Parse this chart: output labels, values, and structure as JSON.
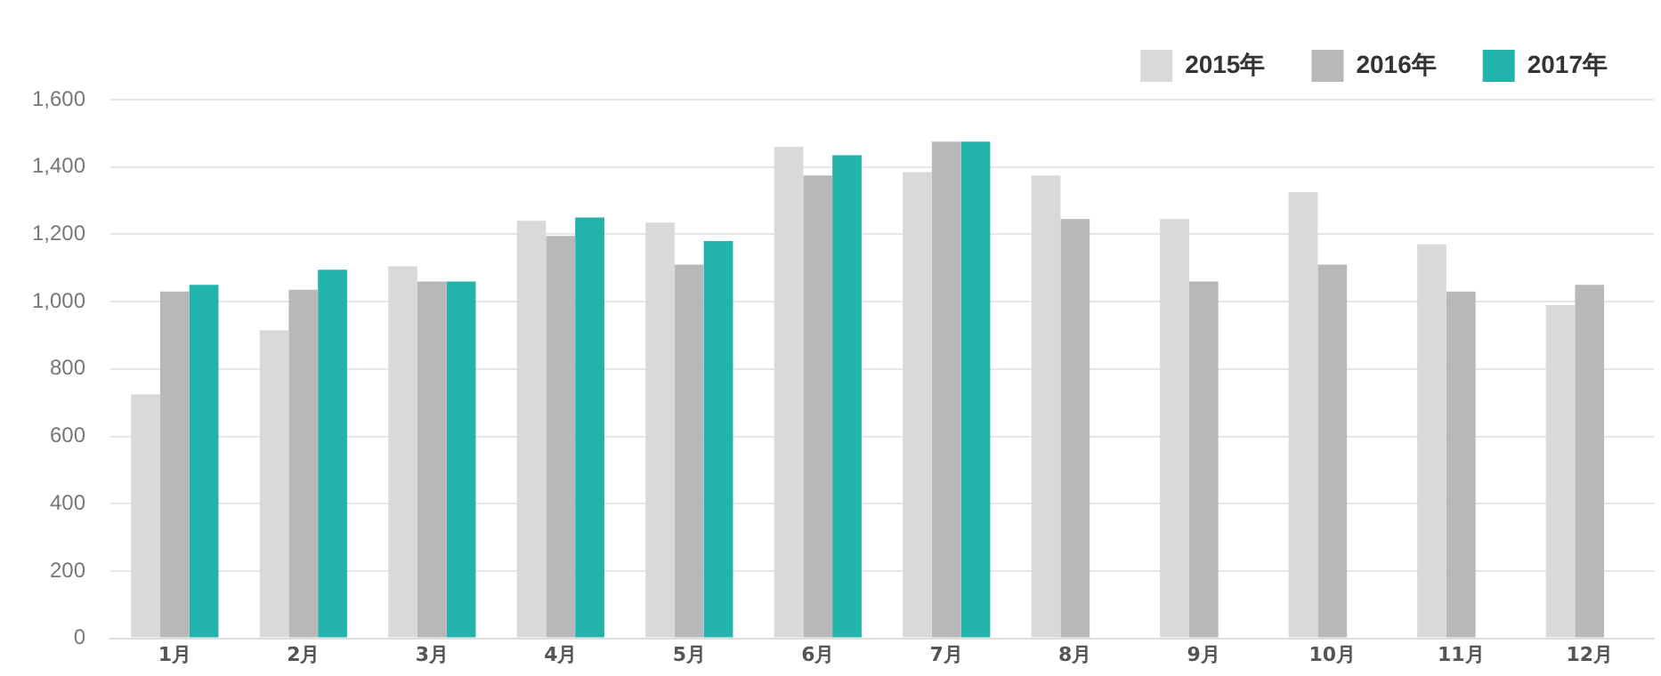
{
  "chart_data": {
    "type": "bar",
    "categories": [
      "1月",
      "2月",
      "3月",
      "4月",
      "5月",
      "6月",
      "7月",
      "8月",
      "9月",
      "10月",
      "11月",
      "12月"
    ],
    "series": [
      {
        "name": "2015年",
        "color": "#d9d9d9",
        "values": [
          725,
          915,
          1105,
          1240,
          1235,
          1460,
          1385,
          1375,
          1245,
          1325,
          1170,
          990
        ]
      },
      {
        "name": "2016年",
        "color": "#b8b8b8",
        "values": [
          1030,
          1035,
          1060,
          1195,
          1110,
          1375,
          1475,
          1245,
          1060,
          1110,
          1030,
          1050
        ]
      },
      {
        "name": "2017年",
        "color": "#22b4ac",
        "values": [
          1050,
          1095,
          1060,
          1250,
          1180,
          1435,
          1475,
          null,
          null,
          null,
          null,
          null
        ]
      }
    ],
    "ylim": [
      0,
      1600
    ],
    "yticks": [
      {
        "value": 0,
        "label": "0"
      },
      {
        "value": 200,
        "label": "200"
      },
      {
        "value": 400,
        "label": "400"
      },
      {
        "value": 600,
        "label": "600"
      },
      {
        "value": 800,
        "label": "800"
      },
      {
        "value": 1000,
        "label": "1,000"
      },
      {
        "value": 1200,
        "label": "1,200"
      },
      {
        "value": 1400,
        "label": "1,400"
      },
      {
        "value": 1600,
        "label": "1,600"
      }
    ],
    "grid": "y",
    "legend": "top right"
  }
}
